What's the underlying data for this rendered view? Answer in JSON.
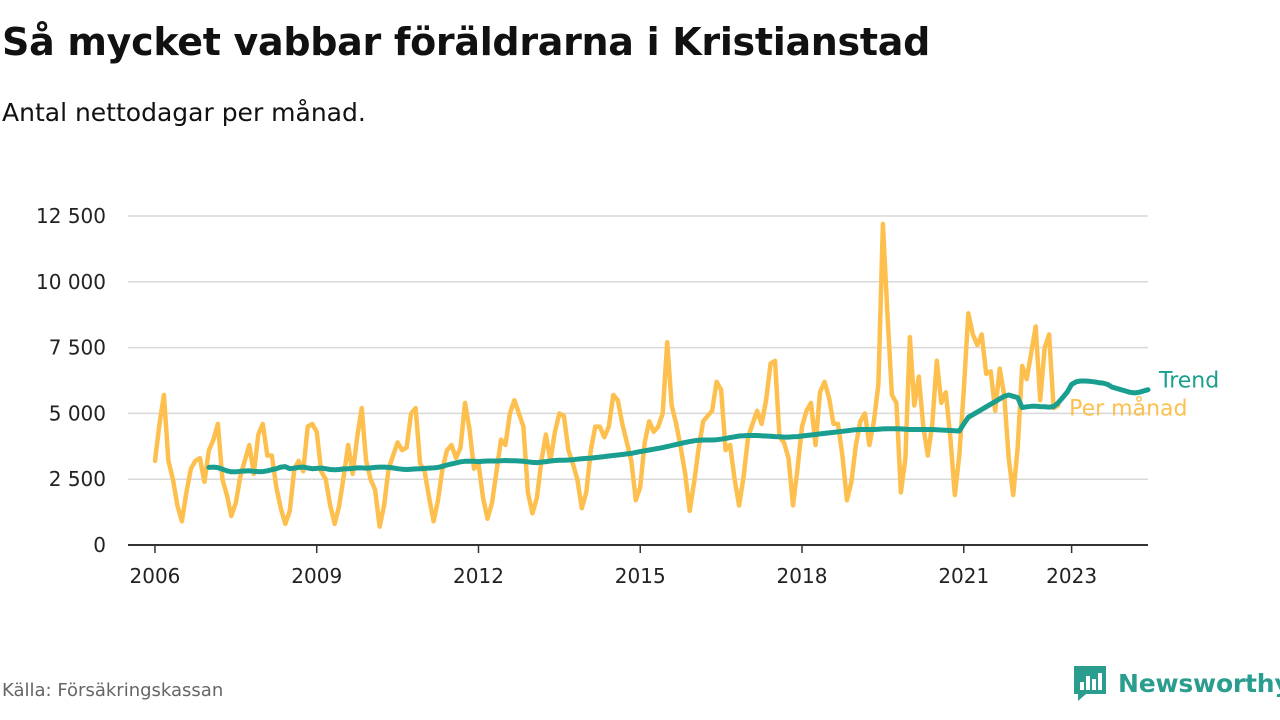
{
  "title": "Så mycket vabbar föräldrarna i Kristianstad",
  "subtitle": "Antal nettodagar per månad.",
  "source": "Källa: Försäkringskassan",
  "brand": {
    "name": "Newsworthy",
    "icon": "newsworthy-logo-icon"
  },
  "colors": {
    "monthly": "#fdc04f",
    "trend": "#1a9e8f",
    "grid": "#d9d9d9",
    "axis": "#333333"
  },
  "chart_data": {
    "type": "line",
    "title": "Så mycket vabbar föräldrarna i Kristianstad",
    "subtitle": "Antal nettodagar per månad.",
    "xlabel": "",
    "ylabel": "",
    "x_ticks": [
      "2006",
      "2009",
      "2012",
      "2015",
      "2018",
      "2021",
      "2023"
    ],
    "y_ticks": [
      "0",
      "2 500",
      "5 000",
      "7 500",
      "10 000",
      "12 500"
    ],
    "y_tick_values": [
      0,
      2500,
      5000,
      7500,
      10000,
      12500
    ],
    "ylim": [
      0,
      12500
    ],
    "xlim": [
      "2005-07",
      "2024-06"
    ],
    "grid": true,
    "legend": "direct labels at line ends",
    "series": [
      {
        "name": "Per månad",
        "start": "2006-01",
        "frequency": "monthly",
        "values": [
          3200,
          4600,
          5700,
          3200,
          2500,
          1500,
          900,
          2000,
          2900,
          3200,
          3300,
          2400,
          3600,
          4000,
          4600,
          2500,
          1900,
          1100,
          1600,
          2600,
          3200,
          3800,
          2700,
          4200,
          4600,
          3400,
          3400,
          2200,
          1400,
          800,
          1300,
          2900,
          3200,
          2800,
          4500,
          4600,
          4300,
          2800,
          2500,
          1500,
          800,
          1500,
          2600,
          3800,
          2700,
          4100,
          5200,
          3200,
          2500,
          2100,
          700,
          1500,
          2900,
          3400,
          3900,
          3600,
          3700,
          5000,
          5200,
          3100,
          2800,
          1800,
          900,
          1700,
          2900,
          3600,
          3800,
          3300,
          3700,
          5400,
          4400,
          2900,
          3100,
          1800,
          1000,
          1600,
          2800,
          4000,
          3800,
          5000,
          5500,
          5000,
          4500,
          2000,
          1200,
          1800,
          3200,
          4200,
          3200,
          4300,
          5000,
          4900,
          3600,
          3100,
          2500,
          1400,
          2000,
          3600,
          4500,
          4500,
          4100,
          4500,
          5700,
          5500,
          4600,
          3900,
          3200,
          1700,
          2200,
          3900,
          4700,
          4300,
          4500,
          5000,
          7700,
          5300,
          4600,
          3700,
          2700,
          1300,
          2400,
          3700,
          4700,
          4900,
          5100,
          6200,
          5900,
          3600,
          3800,
          2500,
          1500,
          2600,
          4100,
          4600,
          5100,
          4600,
          5500,
          6900,
          7000,
          4100,
          3900,
          3300,
          1500,
          2900,
          4500,
          5100,
          5400,
          3800,
          5800,
          6200,
          5600,
          4600,
          4600,
          3400,
          1700,
          2400,
          3800,
          4700,
          5000,
          3800,
          4700,
          6100,
          12200,
          8800,
          5700,
          5400,
          2000,
          3300,
          7900,
          5300,
          6400,
          4500,
          3400,
          4600,
          7000,
          5400,
          5800,
          4100,
          1900,
          3400,
          5900,
          8800,
          8000,
          7600,
          8000,
          6500,
          6600,
          5100,
          6700,
          5700,
          3300,
          1900,
          3700,
          6800,
          6300,
          7300,
          8300,
          5500,
          7500,
          8000,
          5200,
          5300
        ]
      },
      {
        "name": "Trend",
        "start": "2007-01",
        "frequency": "monthly",
        "values": [
          2950,
          2960,
          2940,
          2880,
          2820,
          2780,
          2780,
          2800,
          2810,
          2820,
          2800,
          2790,
          2790,
          2820,
          2860,
          2900,
          2960,
          2980,
          2900,
          2920,
          2950,
          2960,
          2930,
          2900,
          2910,
          2920,
          2900,
          2870,
          2860,
          2870,
          2890,
          2900,
          2910,
          2930,
          2930,
          2920,
          2930,
          2950,
          2960,
          2960,
          2950,
          2930,
          2900,
          2880,
          2870,
          2880,
          2890,
          2900,
          2910,
          2920,
          2930,
          2950,
          2990,
          3040,
          3080,
          3120,
          3160,
          3180,
          3180,
          3180,
          3170,
          3180,
          3190,
          3190,
          3190,
          3200,
          3210,
          3200,
          3200,
          3190,
          3180,
          3160,
          3140,
          3130,
          3150,
          3170,
          3190,
          3210,
          3220,
          3220,
          3230,
          3240,
          3260,
          3280,
          3290,
          3300,
          3320,
          3340,
          3360,
          3380,
          3400,
          3420,
          3440,
          3460,
          3480,
          3520,
          3550,
          3580,
          3610,
          3640,
          3670,
          3700,
          3740,
          3780,
          3820,
          3860,
          3900,
          3930,
          3960,
          3980,
          3990,
          3990,
          3990,
          4000,
          4020,
          4050,
          4080,
          4110,
          4140,
          4150,
          4160,
          4160,
          4160,
          4150,
          4140,
          4130,
          4120,
          4110,
          4100,
          4100,
          4110,
          4120,
          4140,
          4160,
          4180,
          4200,
          4220,
          4240,
          4260,
          4280,
          4300,
          4320,
          4340,
          4360,
          4380,
          4390,
          4390,
          4390,
          4390,
          4400,
          4410,
          4420,
          4420,
          4420,
          4410,
          4400,
          4390,
          4390,
          4390,
          4390,
          4390,
          4390,
          4380,
          4370,
          4360,
          4350,
          4340,
          4330,
          4600,
          4850,
          4950,
          5050,
          5150,
          5250,
          5350,
          5450,
          5550,
          5650,
          5700,
          5650,
          5600,
          5220,
          5250,
          5270,
          5270,
          5260,
          5250,
          5240,
          5260,
          5400,
          5600,
          5800,
          6100,
          6200,
          6230,
          6230,
          6220,
          6200,
          6170,
          6150,
          6100,
          6000,
          5950,
          5900,
          5850,
          5800,
          5780,
          5800,
          5850,
          5900
        ]
      }
    ]
  }
}
